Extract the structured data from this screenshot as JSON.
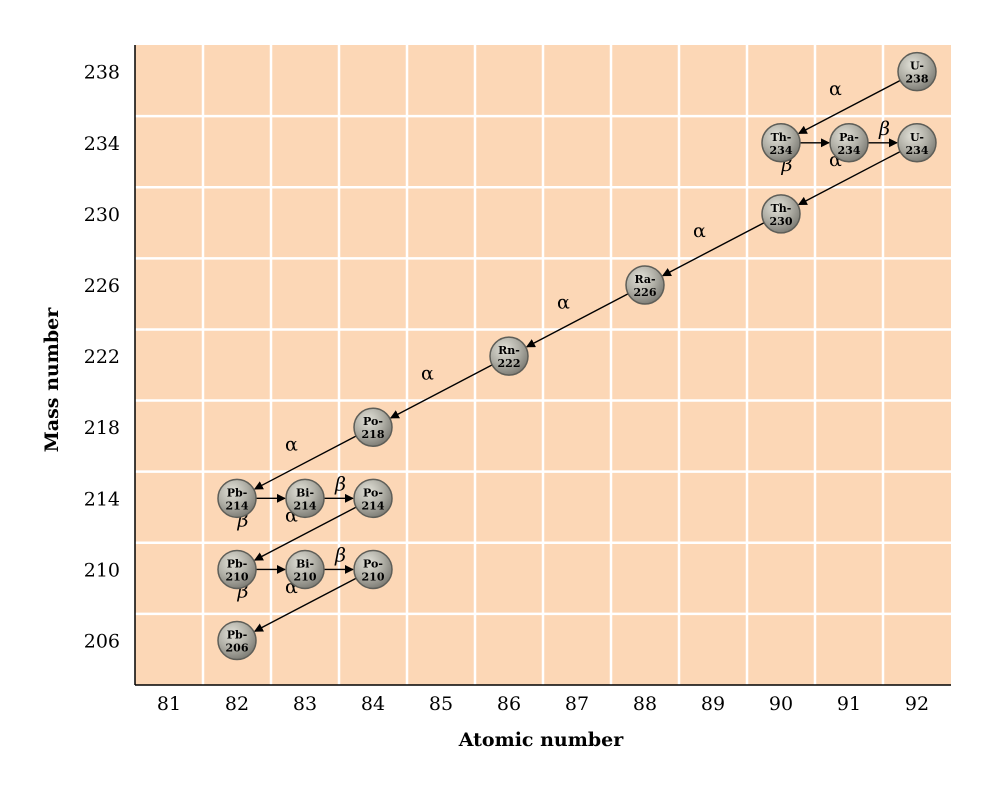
{
  "chart_data": {
    "type": "scatter",
    "title": "",
    "xlabel": "Atomic number",
    "ylabel": "Mass number",
    "xlim": [
      80.5,
      92.5
    ],
    "ylim": [
      203.5,
      239.5
    ],
    "x_ticks": [
      81,
      82,
      83,
      84,
      85,
      86,
      87,
      88,
      89,
      90,
      91,
      92
    ],
    "y_ticks": [
      206,
      210,
      214,
      218,
      222,
      226,
      230,
      234,
      238
    ],
    "grid": true,
    "colors": {
      "background": "#FCD7B6",
      "grid": "#FFFFFF",
      "nucleus_fill": "#A9A89F",
      "nucleus_stroke": "#5E5E58",
      "arrow": "#000000"
    },
    "nuclides": [
      {
        "id": "U-238",
        "element": "U-",
        "mass": "238",
        "z": 92,
        "a": 238
      },
      {
        "id": "Th-234",
        "element": "Th-",
        "mass": "234",
        "z": 90,
        "a": 234
      },
      {
        "id": "Pa-234",
        "element": "Pa-",
        "mass": "234",
        "z": 91,
        "a": 234
      },
      {
        "id": "U-234",
        "element": "U-",
        "mass": "234",
        "z": 92,
        "a": 234
      },
      {
        "id": "Th-230",
        "element": "Th-",
        "mass": "230",
        "z": 90,
        "a": 230
      },
      {
        "id": "Ra-226",
        "element": "Ra-",
        "mass": "226",
        "z": 88,
        "a": 226
      },
      {
        "id": "Rn-222",
        "element": "Rn-",
        "mass": "222",
        "z": 86,
        "a": 222
      },
      {
        "id": "Po-218",
        "element": "Po-",
        "mass": "218",
        "z": 84,
        "a": 218
      },
      {
        "id": "Pb-214",
        "element": "Pb-",
        "mass": "214",
        "z": 82,
        "a": 214
      },
      {
        "id": "Bi-214",
        "element": "Bi-",
        "mass": "214",
        "z": 83,
        "a": 214
      },
      {
        "id": "Po-214",
        "element": "Po-",
        "mass": "214",
        "z": 84,
        "a": 214
      },
      {
        "id": "Pb-210",
        "element": "Pb-",
        "mass": "210",
        "z": 82,
        "a": 210
      },
      {
        "id": "Bi-210",
        "element": "Bi-",
        "mass": "210",
        "z": 83,
        "a": 210
      },
      {
        "id": "Po-210",
        "element": "Po-",
        "mass": "210",
        "z": 84,
        "a": 210
      },
      {
        "id": "Pb-206",
        "element": "Pb-",
        "mass": "206",
        "z": 82,
        "a": 206
      }
    ],
    "decays": [
      {
        "from": "U-238",
        "to": "Th-234",
        "type": "alpha",
        "label": "α"
      },
      {
        "from": "Th-234",
        "to": "Pa-234",
        "type": "beta",
        "label": "β"
      },
      {
        "from": "Pa-234",
        "to": "U-234",
        "type": "beta",
        "label": "β"
      },
      {
        "from": "U-234",
        "to": "Th-230",
        "type": "alpha",
        "label": "α"
      },
      {
        "from": "Th-230",
        "to": "Ra-226",
        "type": "alpha",
        "label": "α"
      },
      {
        "from": "Ra-226",
        "to": "Rn-222",
        "type": "alpha",
        "label": "α"
      },
      {
        "from": "Rn-222",
        "to": "Po-218",
        "type": "alpha",
        "label": "α"
      },
      {
        "from": "Po-218",
        "to": "Pb-214",
        "type": "alpha",
        "label": "α"
      },
      {
        "from": "Pb-214",
        "to": "Bi-214",
        "type": "beta",
        "label": "β"
      },
      {
        "from": "Bi-214",
        "to": "Po-214",
        "type": "beta",
        "label": "β"
      },
      {
        "from": "Po-214",
        "to": "Pb-210",
        "type": "alpha",
        "label": "α"
      },
      {
        "from": "Pb-210",
        "to": "Bi-210",
        "type": "beta",
        "label": "β"
      },
      {
        "from": "Bi-210",
        "to": "Po-210",
        "type": "beta",
        "label": "β"
      },
      {
        "from": "Po-210",
        "to": "Pb-206",
        "type": "alpha",
        "label": "α"
      }
    ]
  }
}
